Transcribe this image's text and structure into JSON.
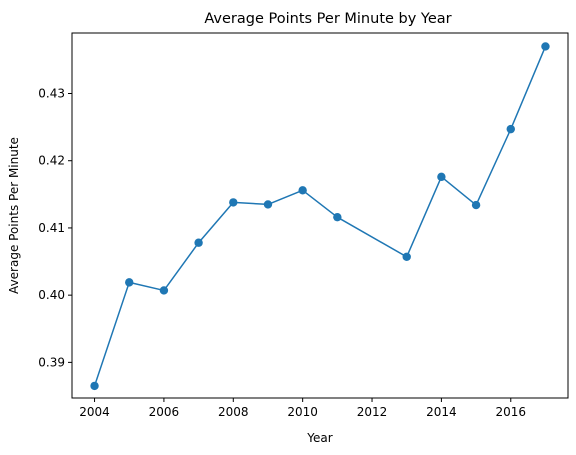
{
  "chart_data": {
    "type": "line",
    "title": "Average Points Per Minute by Year",
    "xlabel": "Year",
    "ylabel": "Average Points Per Minute",
    "xlim": [
      2003.35,
      2017.65
    ],
    "ylim": [
      0.3847,
      0.439
    ],
    "xticks": [
      2004,
      2006,
      2008,
      2010,
      2012,
      2014,
      2016
    ],
    "yticks": [
      0.39,
      0.4,
      0.41,
      0.42,
      0.43
    ],
    "ytick_labels": [
      "0.39",
      "0.40",
      "0.41",
      "0.42",
      "0.43"
    ],
    "grid": false,
    "series": [
      {
        "color": "#1f77b4",
        "marker": "circle",
        "x": [
          2004,
          2005,
          2006,
          2007,
          2008,
          2009,
          2010,
          2011,
          2013,
          2014,
          2015,
          2016,
          2017
        ],
        "y": [
          0.3865,
          0.4019,
          0.4007,
          0.4078,
          0.4138,
          0.4135,
          0.4156,
          0.4116,
          0.4057,
          0.4176,
          0.4134,
          0.4247,
          0.437
        ]
      }
    ]
  }
}
